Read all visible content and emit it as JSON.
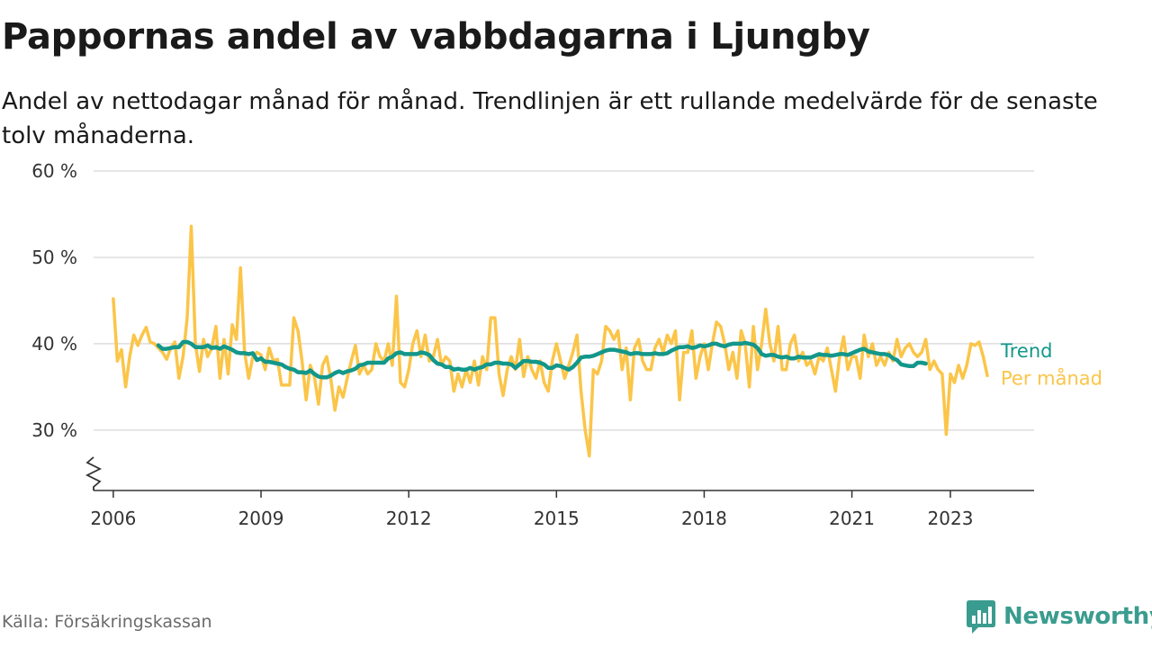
{
  "title": "Pappornas andel av vabbdagarna i Ljungby",
  "subtitle": "Andel av nettodagar månad för månad. Trendlinjen är ett rullande medelvärde för de senaste tolv månaderna.",
  "source": "Källa: Försäkringskassan",
  "logo": {
    "text": "Newsworthy",
    "icon": "bar-chart-speech-bubble-icon"
  },
  "colors": {
    "monthly": "#fbc549",
    "trend": "#13978a",
    "grid": "#dddddd",
    "axis": "#333333",
    "logo": "#3a9c8f"
  },
  "chart_data": {
    "type": "line",
    "ylim": [
      23,
      60
    ],
    "y_ticks": [
      30,
      40,
      50,
      60
    ],
    "y_tick_labels": [
      "30 %",
      "40 %",
      "50 %",
      "60 %"
    ],
    "y_axis_break": true,
    "xlim": [
      2005.6,
      2024.7
    ],
    "x_ticks": [
      2006,
      2009,
      2012,
      2015,
      2018,
      2021,
      2023
    ],
    "x_tick_labels": [
      "2006",
      "2009",
      "2012",
      "2015",
      "2018",
      "2021",
      "2023"
    ],
    "grid": true,
    "legend": "inline-right",
    "series": [
      {
        "name": "Per månad",
        "color": "#fbc549",
        "start": "2006-01",
        "values": [
          45.2,
          38.0,
          39.3,
          35.0,
          38.5,
          41.0,
          39.8,
          41.0,
          41.9,
          40.2,
          40.0,
          39.5,
          39.0,
          38.2,
          39.5,
          40.2,
          36.0,
          38.5,
          43.0,
          53.6,
          40.0,
          36.8,
          40.5,
          38.5,
          39.5,
          42.0,
          36.0,
          40.5,
          36.5,
          42.2,
          40.5,
          48.8,
          39.0,
          36.0,
          38.5,
          39.0,
          38.7,
          37.0,
          39.5,
          38.0,
          38.2,
          35.2,
          35.2,
          35.2,
          43.0,
          41.5,
          38.0,
          33.5,
          37.5,
          36.2,
          33.0,
          37.5,
          38.5,
          36.0,
          32.3,
          35.0,
          33.8,
          36.0,
          38.0,
          39.8,
          36.5,
          37.5,
          36.5,
          37.0,
          40.0,
          38.5,
          38.0,
          40.0,
          37.5,
          45.5,
          35.5,
          35.0,
          37.0,
          40.0,
          41.5,
          38.5,
          41.0,
          38.0,
          38.5,
          40.5,
          37.5,
          38.5,
          38.0,
          34.5,
          36.5,
          35.0,
          37.0,
          35.5,
          38.0,
          35.2,
          38.5,
          37.0,
          43.0,
          43.0,
          36.5,
          34.0,
          37.0,
          38.5,
          37.0,
          40.5,
          36.2,
          38.5,
          37.0,
          36.0,
          38.0,
          35.5,
          34.5,
          38.0,
          40.0,
          38.0,
          36.0,
          37.5,
          39.0,
          41.0,
          34.5,
          30.0,
          27.0,
          37.0,
          36.5,
          38.0,
          42.0,
          41.5,
          40.5,
          41.5,
          37.0,
          39.5,
          33.5,
          39.5,
          40.5,
          38.0,
          37.0,
          37.0,
          39.5,
          40.5,
          39.0,
          41.0,
          40.0,
          41.5,
          33.5,
          39.0,
          39.0,
          41.5,
          36.0,
          38.5,
          40.0,
          37.0,
          40.0,
          42.5,
          42.0,
          40.0,
          37.0,
          39.0,
          36.0,
          41.5,
          40.0,
          35.0,
          42.0,
          37.0,
          40.0,
          44.0,
          40.0,
          38.0,
          42.0,
          37.0,
          37.0,
          40.0,
          41.0,
          38.0,
          39.0,
          37.5,
          38.0,
          36.5,
          38.5,
          38.0,
          39.5,
          37.0,
          34.5,
          38.5,
          40.8,
          37.0,
          38.5,
          38.5,
          36.0,
          41.0,
          38.5,
          40.0,
          37.5,
          38.5,
          37.5,
          39.0,
          38.0,
          40.5,
          38.5,
          39.5,
          40.0,
          39.0,
          38.5,
          39.0,
          40.5,
          37.0,
          38.0,
          37.0,
          36.5,
          29.5,
          36.5,
          35.5,
          37.5,
          36.0,
          37.5,
          40.0,
          39.8,
          40.2,
          38.5,
          36.3
        ]
      },
      {
        "name": "Trend",
        "color": "#13978a",
        "start": "2006-12",
        "values": [
          39.8,
          39.4,
          39.4,
          39.5,
          39.6,
          39.6,
          40.2,
          40.2,
          40.0,
          39.6,
          39.6,
          39.6,
          39.8,
          39.5,
          39.6,
          39.4,
          39.7,
          39.5,
          39.3,
          39.0,
          38.9,
          38.9,
          38.8,
          38.9,
          38.1,
          38.3,
          37.9,
          37.9,
          37.8,
          37.7,
          37.6,
          37.3,
          37.1,
          37.0,
          36.7,
          36.7,
          36.6,
          36.9,
          36.5,
          36.2,
          36.1,
          36.1,
          36.3,
          36.6,
          36.8,
          36.6,
          36.8,
          36.9,
          37.1,
          37.5,
          37.6,
          37.8,
          37.8,
          37.8,
          37.8,
          37.8,
          38.3,
          38.5,
          38.9,
          39.0,
          38.8,
          38.8,
          38.8,
          38.8,
          39.0,
          38.9,
          38.7,
          38.1,
          37.7,
          37.6,
          37.3,
          37.3,
          37.0,
          37.1,
          37.0,
          37.0,
          37.2,
          37.0,
          37.2,
          37.3,
          37.6,
          37.6,
          37.8,
          37.8,
          37.7,
          37.7,
          37.6,
          37.2,
          37.6,
          38.0,
          38.0,
          37.9,
          37.9,
          37.8,
          37.6,
          37.2,
          37.2,
          37.5,
          37.4,
          37.2,
          37.0,
          37.3,
          37.8,
          38.4,
          38.5,
          38.5,
          38.6,
          38.8,
          39.0,
          39.2,
          39.3,
          39.3,
          39.2,
          39.1,
          39.0,
          38.8,
          38.9,
          38.9,
          38.8,
          38.8,
          38.8,
          38.9,
          38.8,
          38.8,
          38.9,
          39.2,
          39.4,
          39.6,
          39.6,
          39.7,
          39.5,
          39.6,
          39.8,
          39.7,
          39.8,
          40.0,
          40.0,
          39.8,
          39.7,
          39.9,
          40.0,
          40.0,
          40.0,
          40.1,
          40.0,
          39.9,
          39.5,
          38.8,
          38.6,
          38.7,
          38.7,
          38.5,
          38.4,
          38.5,
          38.3,
          38.3,
          38.5,
          38.4,
          38.4,
          38.4,
          38.6,
          38.8,
          38.7,
          38.7,
          38.6,
          38.7,
          38.8,
          38.8,
          38.7,
          38.9,
          39.1,
          39.3,
          39.4,
          39.1,
          39.0,
          38.9,
          38.8,
          38.8,
          38.7,
          38.3,
          38.1,
          37.6,
          37.5,
          37.4,
          37.4,
          37.8,
          37.8,
          37.7
        ]
      }
    ]
  }
}
